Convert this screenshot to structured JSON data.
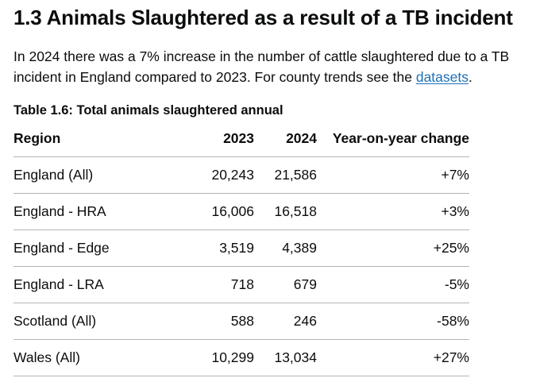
{
  "section": {
    "title": "1.3 Animals Slaughtered as a result of a TB incident"
  },
  "intro": {
    "text_before_link": "In 2024 there was a 7% increase in the number of cattle slaughtered due to a TB incident in England compared to 2023. For county trends see the ",
    "link_text": "datasets",
    "text_after_link": "."
  },
  "table": {
    "caption": "Table 1.6: Total animals slaughtered annual",
    "headers": {
      "region": "Region",
      "y2023": "2023",
      "y2024": "2024",
      "change": "Year-on-year change"
    },
    "rows": [
      {
        "region": "England (All)",
        "y2023": "20,243",
        "y2024": "21,586",
        "change": "+7%"
      },
      {
        "region": "England - HRA",
        "y2023": "16,006",
        "y2024": "16,518",
        "change": "+3%"
      },
      {
        "region": "England - Edge",
        "y2023": "3,519",
        "y2024": "4,389",
        "change": "+25%"
      },
      {
        "region": "England - LRA",
        "y2023": "718",
        "y2024": "679",
        "change": "-5%"
      },
      {
        "region": "Scotland (All)",
        "y2023": "588",
        "y2024": "246",
        "change": "-58%"
      },
      {
        "region": "Wales (All)",
        "y2023": "10,299",
        "y2024": "13,034",
        "change": "+27%"
      }
    ]
  }
}
